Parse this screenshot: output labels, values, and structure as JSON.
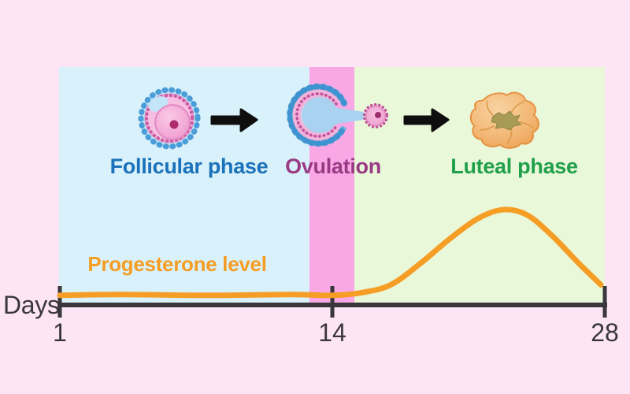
{
  "background": "#fde5f6",
  "panels": {
    "follicular": {
      "label": "Follicular phase",
      "text_color": "#1b72ba",
      "bg": "#d9f1fa"
    },
    "ovulation": {
      "label": "Ovulation",
      "text_color": "#993a84",
      "bg": "#f9a7e5"
    },
    "luteal": {
      "label": "Luteal phase",
      "text_color": "#21a04b",
      "bg": "#eaf8da"
    }
  },
  "curve": {
    "label": "Progesterone level",
    "color": "#f59d24",
    "points_day_level": [
      [
        1,
        0.02
      ],
      [
        4,
        0.03
      ],
      [
        8,
        0.02
      ],
      [
        12,
        0.03
      ],
      [
        14,
        0.02
      ],
      [
        15.5,
        0.05
      ],
      [
        17,
        0.14
      ],
      [
        18.5,
        0.38
      ],
      [
        20,
        0.66
      ],
      [
        21.5,
        0.9
      ],
      [
        22.8,
        1.0
      ],
      [
        24,
        0.94
      ],
      [
        25.3,
        0.7
      ],
      [
        26.6,
        0.4
      ],
      [
        27.8,
        0.14
      ]
    ]
  },
  "axis": {
    "label": "Days",
    "color": "#3a373c",
    "ticks": [
      {
        "day": 1,
        "label": "1"
      },
      {
        "day": 14,
        "label": "14"
      },
      {
        "day": 28,
        "label": "28"
      }
    ]
  },
  "arrows": {
    "color": "#0e0e0e"
  },
  "icons": {
    "follicle": "follicle-icon",
    "ovulation": "ovulation-icon",
    "ovum": "ovum-icon",
    "corpus_luteum": "corpus-luteum-icon",
    "arrow": "arrow-right-icon"
  }
}
